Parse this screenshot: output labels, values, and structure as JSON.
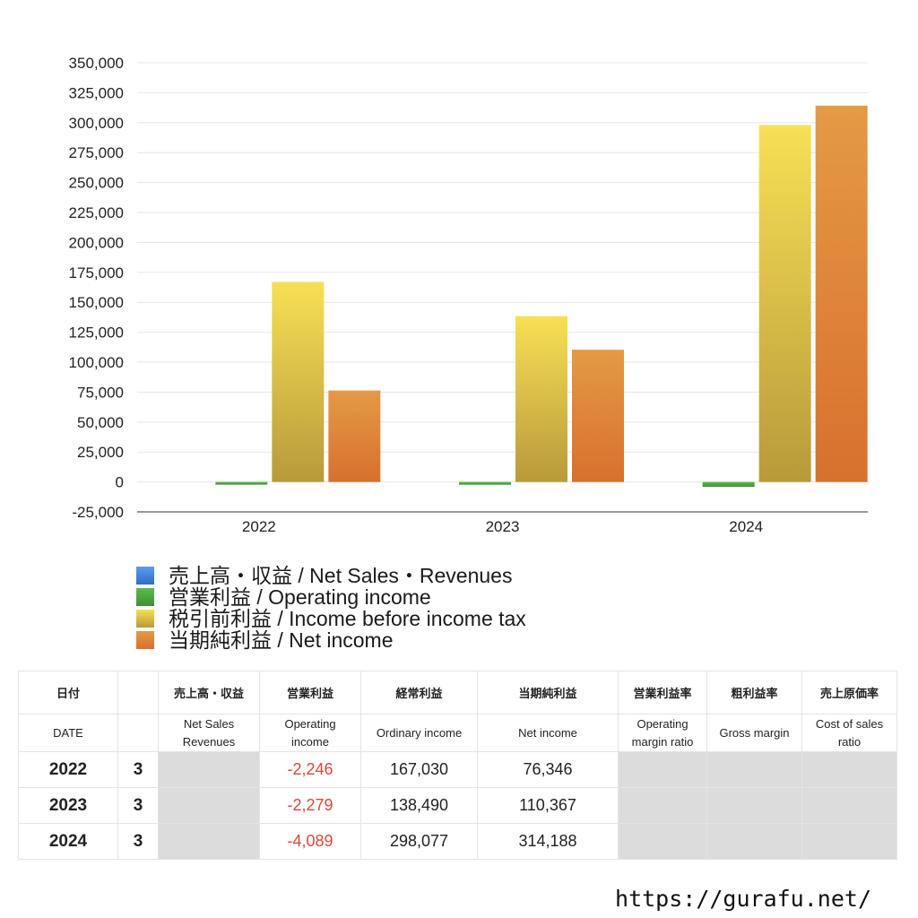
{
  "chart_data": {
    "type": "bar",
    "categories": [
      "2022",
      "2023",
      "2024"
    ],
    "series": [
      {
        "name": "売上高・収益 / Net Sales・Revenues",
        "color": "#4a8fe0",
        "values": [
          null,
          null,
          null
        ]
      },
      {
        "name": "営業利益 / Operating income",
        "color": "#4da843",
        "values": [
          -2246,
          -2279,
          -4089
        ]
      },
      {
        "name": "税引前利益 / Income before income tax",
        "color": "#e5cc3c",
        "values": [
          167030,
          138490,
          298077
        ]
      },
      {
        "name": "当期純利益 / Net income",
        "color": "#e07a30",
        "values": [
          76346,
          110367,
          314188
        ]
      }
    ],
    "ylim": [
      -25000,
      350000
    ],
    "yticks": [
      -25000,
      0,
      25000,
      50000,
      75000,
      100000,
      125000,
      150000,
      175000,
      200000,
      225000,
      250000,
      275000,
      300000,
      325000,
      350000
    ],
    "ytick_labels": [
      "-25,000",
      "0",
      "25,000",
      "50,000",
      "75,000",
      "100,000",
      "125,000",
      "150,000",
      "175,000",
      "200,000",
      "225,000",
      "250,000",
      "275,000",
      "300,000",
      "325,000",
      "350,000"
    ],
    "grid": true,
    "legend_position": "bottom-left"
  },
  "table": {
    "headers_jp": [
      "日付",
      "",
      "売上高・収益",
      "営業利益",
      "経常利益",
      "当期純利益",
      "営業利益率",
      "粗利益率",
      "売上原価率"
    ],
    "headers_en": [
      "DATE",
      "",
      "Net Sales\nRevenues",
      "Operating\nincome",
      "Ordinary income",
      "Net income",
      "Operating\nmargin ratio",
      "Gross margin",
      "Cost of sales\nratio"
    ],
    "rows": [
      {
        "year": "2022",
        "month": "3",
        "net_sales": "",
        "operating_income": "-2,246",
        "ordinary_income": "167,030",
        "net_income": "76,346",
        "operating_margin": "",
        "gross_margin": "",
        "cost_of_sales": ""
      },
      {
        "year": "2023",
        "month": "3",
        "net_sales": "",
        "operating_income": "-2,279",
        "ordinary_income": "138,490",
        "net_income": "110,367",
        "operating_margin": "",
        "gross_margin": "",
        "cost_of_sales": ""
      },
      {
        "year": "2024",
        "month": "3",
        "net_sales": "",
        "operating_income": "-4,089",
        "ordinary_income": "298,077",
        "net_income": "314,188",
        "operating_margin": "",
        "gross_margin": "",
        "cost_of_sales": ""
      }
    ]
  },
  "footer": {
    "url": "https://gurafu.net/"
  }
}
